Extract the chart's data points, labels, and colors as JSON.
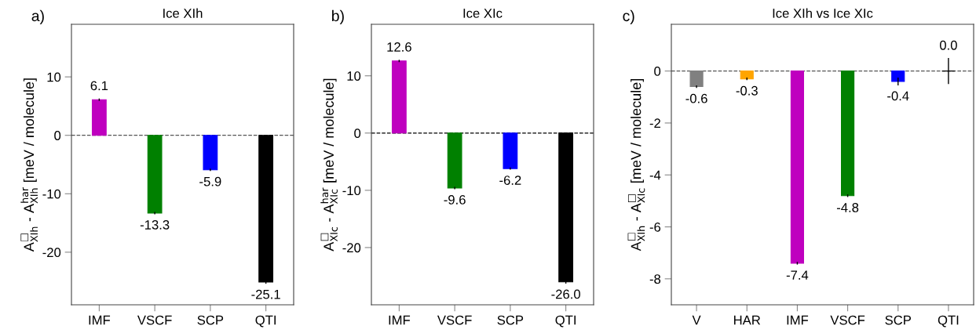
{
  "chart_data": [
    {
      "type": "bar",
      "title": "Ice XIh",
      "ylabel": "A$^{□}$$_{XIh}$ - A$^{har}$$_{XIh}$ [meV / molecule]",
      "annotations": [
        "a)"
      ],
      "categories": [
        "IMF",
        "VSCF",
        "SCP",
        "QTI"
      ],
      "values": [
        6.1,
        -13.3,
        -5.9,
        -25.1
      ],
      "colors": [
        "#bf00bf",
        "#008000",
        "#0000ff",
        "#000000"
      ],
      "errors": [
        0.2,
        0.2,
        0.2,
        0.3
      ],
      "data_labels": true,
      "ylim": [
        -29,
        19
      ],
      "yticks": [
        -20,
        -10,
        0,
        10
      ],
      "grid": false,
      "ref_lines": [
        {
          "axis": "y",
          "value": 0,
          "color": "#555555",
          "line_style": "dashed"
        }
      ]
    },
    {
      "type": "bar",
      "title": "Ice XIc",
      "ylabel": "A$^{□}$$_{XIc}$ - A$^{har}$$_{XIc}$ [meV / molecule]",
      "annotations": [
        "b)"
      ],
      "categories": [
        "IMF",
        "VSCF",
        "SCP",
        "QTI"
      ],
      "values": [
        12.6,
        -9.6,
        -6.2,
        -26.0
      ],
      "colors": [
        "#bf00bf",
        "#008000",
        "#0000ff",
        "#000000"
      ],
      "errors": [
        0.2,
        0.2,
        0.2,
        0.3
      ],
      "value_labels": [
        "12.6",
        "-9.6",
        "-6.2",
        "-26.0"
      ],
      "ylim": [
        -30,
        19
      ],
      "yticks": [
        -20,
        -10,
        0,
        10
      ],
      "grid": false,
      "ref_lines": [
        {
          "axis": "y",
          "value": 0,
          "color": "#000000",
          "line_style": "dashed"
        }
      ]
    },
    {
      "type": "bar",
      "title": "Ice XIh vs Ice XIc",
      "ylabel": "A$^{□}$$_{XIh}$ - A$^{□}$$_{XIc}$ [meV / molecule]",
      "annotations": [
        "c)"
      ],
      "categories": [
        "V",
        "HAR",
        "IMF",
        "VSCF",
        "SCP",
        "QTI"
      ],
      "values": [
        -0.6,
        -0.3,
        -7.4,
        -4.8,
        -0.4,
        0.0
      ],
      "colors": [
        "#808080",
        "#ffa500",
        "#bf00bf",
        "#008000",
        "#0000ff",
        "#000000"
      ],
      "errors": [
        0.05,
        0.05,
        0.05,
        0.05,
        0.15,
        0.5
      ],
      "value_labels": [
        "-0.6",
        "-0.3",
        "-7.4",
        "-4.8",
        "-0.4",
        "0.0"
      ],
      "ylim": [
        -9,
        1.8
      ],
      "yticks": [
        -8,
        -6,
        -4,
        -2,
        0
      ],
      "grid": false,
      "ref_lines": [
        {
          "axis": "y",
          "value": 0,
          "color": "#555555",
          "line_style": "dashed"
        }
      ]
    }
  ]
}
